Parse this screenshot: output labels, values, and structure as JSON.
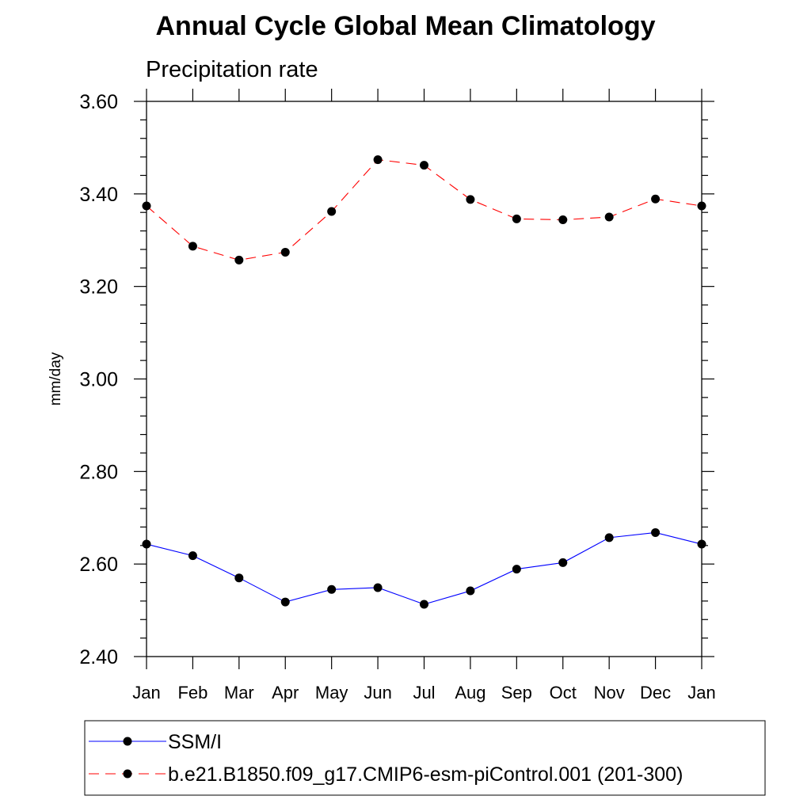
{
  "chart_data": {
    "type": "line",
    "title": "Annual Cycle Global Mean Climatology",
    "subtitle": "Precipitation rate",
    "xlabel": "",
    "ylabel": "mm/day",
    "categories": [
      "Jan",
      "Feb",
      "Mar",
      "Apr",
      "May",
      "Jun",
      "Jul",
      "Aug",
      "Sep",
      "Oct",
      "Nov",
      "Dec",
      "Jan"
    ],
    "ylim": [
      2.4,
      3.6
    ],
    "yticks": [
      2.4,
      2.6,
      2.8,
      3.0,
      3.2,
      3.4,
      3.6
    ],
    "ytick_labels": [
      "2.40",
      "2.60",
      "2.80",
      "3.00",
      "3.20",
      "3.40",
      "3.60"
    ],
    "grid": false,
    "legend_position": "bottom",
    "series": [
      {
        "name": "SSM/I",
        "color": "#0000ff",
        "dashed": false,
        "values": [
          2.643,
          2.618,
          2.57,
          2.518,
          2.545,
          2.549,
          2.513,
          2.542,
          2.589,
          2.603,
          2.657,
          2.668,
          2.643
        ]
      },
      {
        "name": "b.e21.B1850.f09_g17.CMIP6-esm-piControl.001 (201-300)",
        "color": "#ff0000",
        "dashed": true,
        "values": [
          3.374,
          3.287,
          3.257,
          3.274,
          3.362,
          3.474,
          3.462,
          3.388,
          3.346,
          3.344,
          3.35,
          3.389,
          3.374
        ]
      }
    ]
  }
}
